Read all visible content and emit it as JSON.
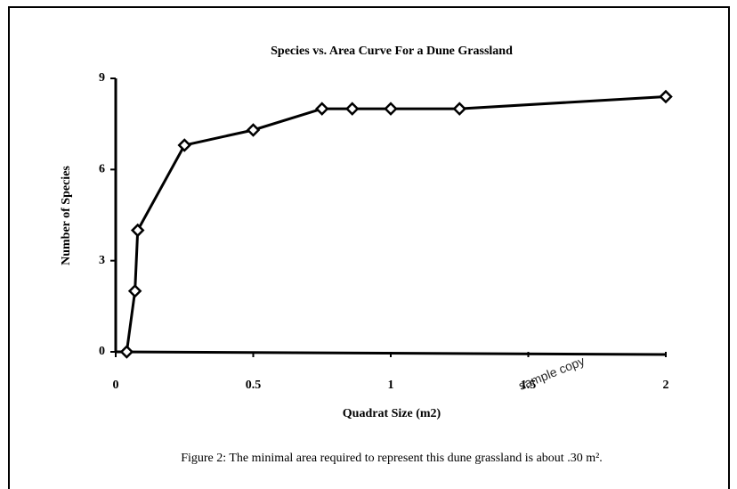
{
  "chart_data": {
    "type": "line",
    "title": "Species vs. Area Curve For a Dune Grassland",
    "x_label": "Quadrat Size (m2)",
    "y_label": "Number of Species",
    "x": [
      0.04,
      0.07,
      0.08,
      0.25,
      0.5,
      0.75,
      0.86,
      1,
      1.25,
      2
    ],
    "series": [
      {
        "name": "Species",
        "color": "#000000",
        "values": [
          0,
          2,
          4,
          6.8,
          7.3,
          8,
          8,
          8,
          8,
          8.4
        ]
      }
    ],
    "xlim": [
      0,
      2
    ],
    "xticks": [
      0,
      0.5,
      1,
      1.5,
      2
    ],
    "ylim": [
      0,
      9
    ],
    "yticks": [
      0,
      3,
      6,
      9
    ],
    "grid": false
  },
  "caption": "Figure 2: The minimal area required to represent this dune grassland is about .30 m².",
  "watermark": "sample copy"
}
